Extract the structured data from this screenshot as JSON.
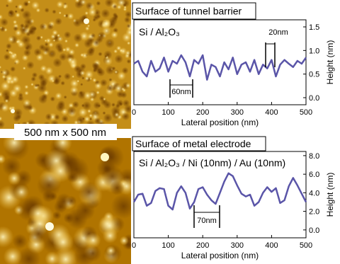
{
  "caption": "500 nm x 500 nm",
  "chart_data": [
    {
      "type": "line",
      "title": "Surface of tunnel barrier",
      "x_label": "Lateral position (nm)",
      "y_label": "Height (nm)",
      "x": [
        0,
        12.5,
        25,
        37.5,
        50,
        62.5,
        75,
        87.5,
        100,
        112.5,
        125,
        137.5,
        150,
        162.5,
        175,
        187.5,
        200,
        212.5,
        225,
        237.5,
        250,
        262.5,
        275,
        287.5,
        300,
        312.5,
        325,
        337.5,
        350,
        362.5,
        375,
        387.5,
        400,
        412.5,
        425,
        437.5,
        450,
        462.5,
        475,
        487.5,
        500
      ],
      "series": [
        {
          "name": "Si / Al₂O₃",
          "color": "#5a55a8",
          "values": [
            0.72,
            0.78,
            0.55,
            0.45,
            0.78,
            0.55,
            0.62,
            0.85,
            0.55,
            0.78,
            0.72,
            0.9,
            0.75,
            0.45,
            0.8,
            0.72,
            0.9,
            0.38,
            0.7,
            0.65,
            0.45,
            0.75,
            0.6,
            0.85,
            0.5,
            0.7,
            0.75,
            0.55,
            0.8,
            0.5,
            0.7,
            0.62,
            0.8,
            0.45,
            0.7,
            0.8,
            0.72,
            0.65,
            0.78,
            0.72,
            0.85
          ]
        }
      ],
      "xlim": [
        0,
        500
      ],
      "xticks": [
        0,
        100,
        200,
        300,
        400,
        500
      ],
      "ylim": [
        -0.15,
        1.65
      ],
      "yticks": [
        {
          "value": 0,
          "label": "0.0"
        },
        {
          "value": 0.5,
          "label": "0.5"
        },
        {
          "value": 1,
          "label": "1.0"
        },
        {
          "value": 1.5,
          "label": "1.5"
        }
      ],
      "annotations": [
        "20nm",
        "60nm"
      ]
    },
    {
      "type": "line",
      "title": "Surface of metal electrode",
      "x_label": "Lateral position (nm)",
      "y_label": "Height (nm)",
      "x": [
        0,
        12.5,
        25,
        37.5,
        50,
        62.5,
        75,
        87.5,
        100,
        112.5,
        125,
        137.5,
        150,
        162.5,
        175,
        187.5,
        200,
        212.5,
        225,
        237.5,
        250,
        262.5,
        275,
        287.5,
        300,
        312.5,
        325,
        337.5,
        350,
        362.5,
        375,
        387.5,
        400,
        412.5,
        425,
        437.5,
        450,
        462.5,
        475,
        487.5,
        500
      ],
      "series": [
        {
          "name": "Si / Al₂O₃ / Ni (10nm) / Au (10nm)",
          "color": "#5a55a8",
          "values": [
            3.0,
            3.8,
            3.9,
            2.6,
            2.9,
            4.2,
            4.5,
            4.4,
            2.6,
            2.2,
            4.0,
            4.7,
            4.0,
            2.3,
            3.0,
            4.4,
            4.6,
            3.8,
            3.2,
            2.8,
            4.0,
            5.2,
            6.1,
            5.8,
            4.8,
            3.9,
            3.6,
            3.8,
            2.6,
            3.0,
            4.0,
            4.6,
            4.1,
            4.5,
            2.9,
            3.2,
            4.7,
            5.6,
            4.8,
            3.9,
            3.0
          ]
        }
      ],
      "xlim": [
        0,
        500
      ],
      "xticks": [
        0,
        100,
        200,
        300,
        400,
        500
      ],
      "ylim": [
        -0.85,
        8.45
      ],
      "yticks": [
        {
          "value": 0,
          "label": "0.0"
        },
        {
          "value": 2,
          "label": "2.0"
        },
        {
          "value": 4,
          "label": "4.0"
        },
        {
          "value": 6,
          "label": "6.0"
        },
        {
          "value": 8,
          "label": "8.0"
        }
      ],
      "annotations": [
        "70nm"
      ]
    }
  ]
}
